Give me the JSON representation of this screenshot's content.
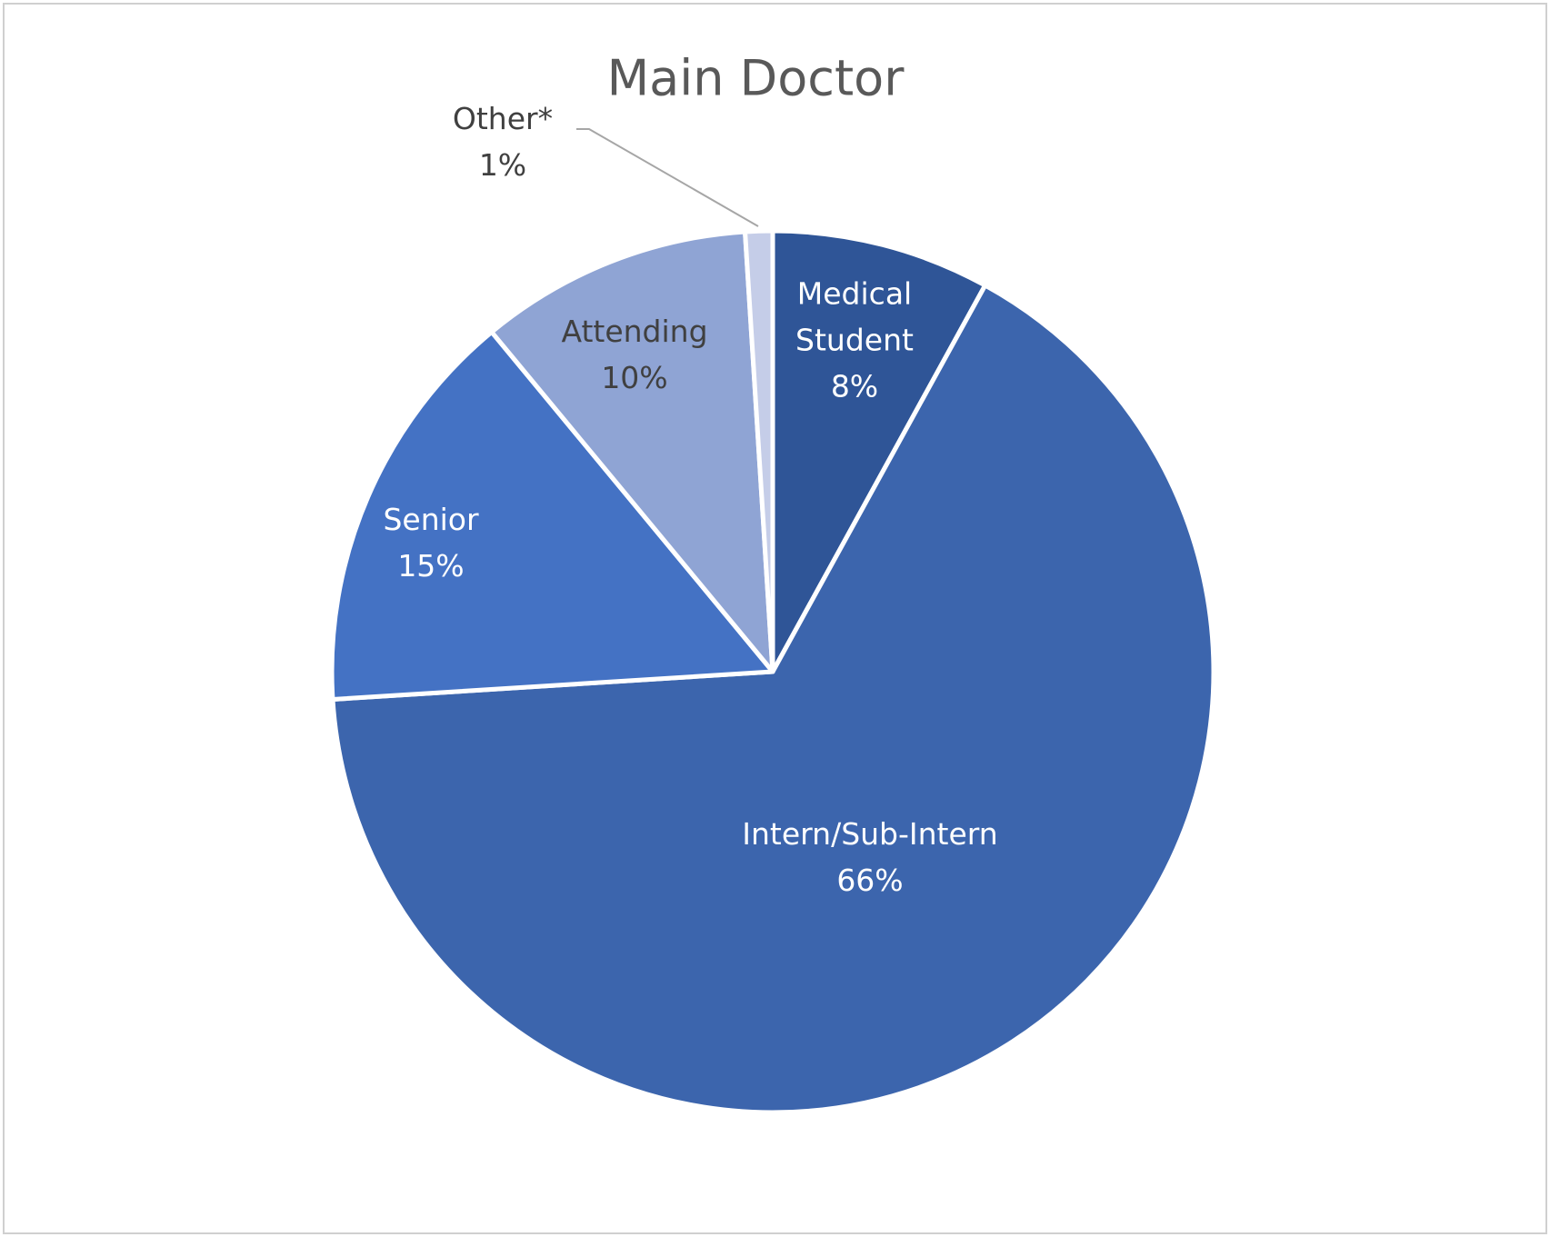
{
  "chart_data": {
    "type": "pie",
    "title": "Main Doctor",
    "categories": [
      "Medical Student",
      "Intern/Sub-Intern",
      "Senior",
      "Attending",
      "Other*"
    ],
    "values": [
      8,
      66,
      15,
      10,
      1
    ],
    "value_labels": [
      "8%",
      "66%",
      "15%",
      "10%",
      "1%"
    ],
    "colors": [
      "#2f5597",
      "#3c65ad",
      "#4472c4",
      "#8fa4d4",
      "#c5cde8"
    ]
  }
}
